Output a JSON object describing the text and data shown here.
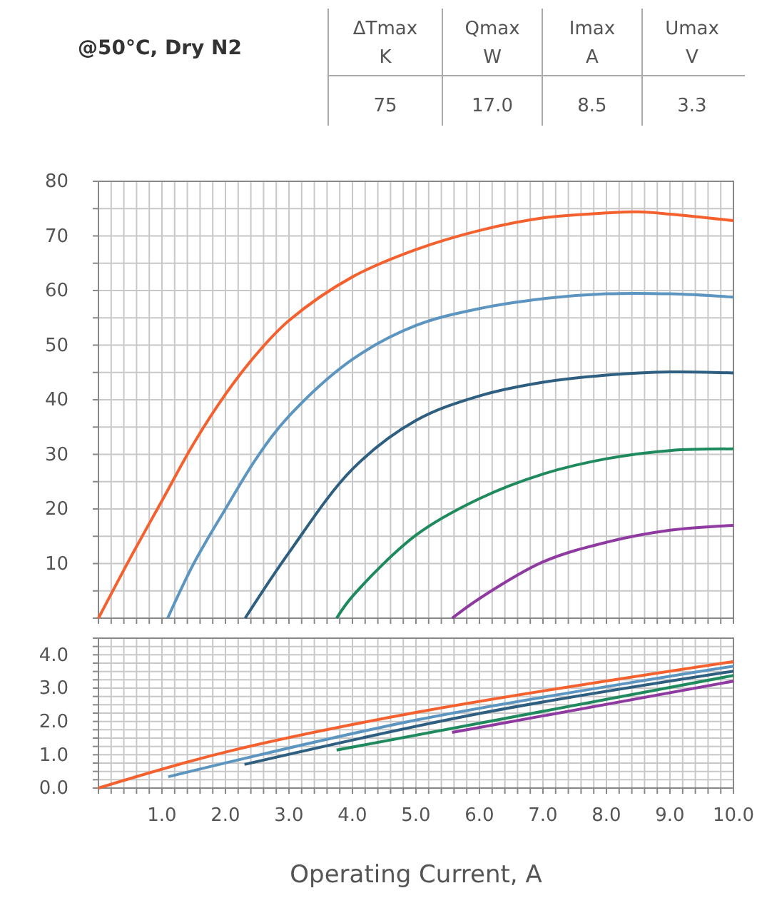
{
  "chart_data": [
    {
      "type": "other",
      "title": "@50°C, Dry N2",
      "categories": [
        "ΔTmax\nK",
        "Qmax\nW",
        "Imax\nA",
        "Umax\nV"
      ],
      "value_labels": [
        "75",
        "17.0",
        "8.5",
        "3.3"
      ]
    },
    {
      "type": "line",
      "tick_labels": "y",
      "grid": true,
      "xlim": [
        0,
        10
      ],
      "ylim": [
        0,
        80
      ],
      "xticks": [
        {
          "value": 0,
          "label": null
        },
        {
          "value": 0.2,
          "label": null
        },
        {
          "value": 0.4,
          "label": null
        },
        {
          "value": 0.6,
          "label": null
        },
        {
          "value": 0.8,
          "label": null
        },
        {
          "value": 1,
          "label": null
        },
        {
          "value": 1.2,
          "label": null
        },
        {
          "value": 1.4,
          "label": null
        },
        {
          "value": 1.6,
          "label": null
        },
        {
          "value": 1.8,
          "label": null
        },
        {
          "value": 2,
          "label": null
        },
        {
          "value": 2.2,
          "label": null
        },
        {
          "value": 2.4,
          "label": null
        },
        {
          "value": 2.6,
          "label": null
        },
        {
          "value": 2.8,
          "label": null
        },
        {
          "value": 3,
          "label": null
        },
        {
          "value": 3.2,
          "label": null
        },
        {
          "value": 3.4,
          "label": null
        },
        {
          "value": 3.6,
          "label": null
        },
        {
          "value": 3.8,
          "label": null
        },
        {
          "value": 4,
          "label": null
        },
        {
          "value": 4.2,
          "label": null
        },
        {
          "value": 4.4,
          "label": null
        },
        {
          "value": 4.6,
          "label": null
        },
        {
          "value": 4.8,
          "label": null
        },
        {
          "value": 5,
          "label": null
        },
        {
          "value": 5.2,
          "label": null
        },
        {
          "value": 5.4,
          "label": null
        },
        {
          "value": 5.6,
          "label": null
        },
        {
          "value": 5.8,
          "label": null
        },
        {
          "value": 6,
          "label": null
        },
        {
          "value": 6.2,
          "label": null
        },
        {
          "value": 6.4,
          "label": null
        },
        {
          "value": 6.6,
          "label": null
        },
        {
          "value": 6.8,
          "label": null
        },
        {
          "value": 7,
          "label": null
        },
        {
          "value": 7.2,
          "label": null
        },
        {
          "value": 7.4,
          "label": null
        },
        {
          "value": 7.6,
          "label": null
        },
        {
          "value": 7.8,
          "label": null
        },
        {
          "value": 8,
          "label": null
        },
        {
          "value": 8.2,
          "label": null
        },
        {
          "value": 8.4,
          "label": null
        },
        {
          "value": 8.6,
          "label": null
        },
        {
          "value": 8.8,
          "label": null
        },
        {
          "value": 9,
          "label": null
        },
        {
          "value": 9.2,
          "label": null
        },
        {
          "value": 9.4,
          "label": null
        },
        {
          "value": 9.6,
          "label": null
        },
        {
          "value": 9.8,
          "label": null
        },
        {
          "value": 10,
          "label": null
        }
      ],
      "yticks": [
        {
          "value": 0,
          "label": null
        },
        {
          "value": 5,
          "label": null
        },
        10,
        {
          "value": 15,
          "label": null
        },
        20,
        {
          "value": 25,
          "label": null
        },
        30,
        {
          "value": 35,
          "label": null
        },
        40,
        {
          "value": 45,
          "label": null
        },
        50,
        {
          "value": 55,
          "label": null
        },
        60,
        {
          "value": 65,
          "label": null
        },
        70,
        {
          "value": 75,
          "label": null
        },
        80
      ],
      "series": [
        {
          "color": "#f4612f",
          "x": [
            0,
            0.5,
            1,
            1.5,
            2,
            2.5,
            3,
            4,
            5,
            6,
            7,
            8,
            8.5,
            9,
            10
          ],
          "values": [
            0,
            11,
            21.5,
            32,
            41,
            48.5,
            54.5,
            62.5,
            67.5,
            71,
            73.3,
            74.2,
            74.4,
            74,
            72.8
          ]
        },
        {
          "color": "#5b95c0",
          "x": [
            1.09,
            1.5,
            2,
            2.5,
            3,
            4,
            5,
            6,
            7,
            8,
            9,
            10
          ],
          "values": [
            0,
            10,
            20,
            29.5,
            37,
            47.4,
            53.6,
            56.7,
            58.5,
            59.4,
            59.4,
            58.8
          ]
        },
        {
          "color": "#2e5f80",
          "x": [
            2.31,
            3,
            4,
            5,
            6,
            7,
            8,
            9,
            10
          ],
          "values": [
            0,
            12,
            27.3,
            36.2,
            40.7,
            43.2,
            44.5,
            45.1,
            44.9
          ]
        },
        {
          "color": "#1e8a5e",
          "x": [
            3.75,
            4,
            5,
            6,
            7,
            8,
            9,
            10
          ],
          "values": [
            0,
            4,
            15.2,
            21.9,
            26.4,
            29.2,
            30.7,
            31
          ]
        },
        {
          "color": "#8e3aa0",
          "x": [
            5.57,
            6,
            7,
            8,
            9,
            10
          ],
          "values": [
            0,
            3.6,
            10.3,
            13.9,
            16.1,
            17
          ]
        }
      ]
    },
    {
      "type": "line",
      "grid": true,
      "xlabel": "Operating Current, A",
      "xlim": [
        0,
        10
      ],
      "ylim": [
        0,
        4.5
      ],
      "xticks": [
        {
          "value": 0,
          "label": null
        },
        {
          "value": 0.2,
          "label": null
        },
        {
          "value": 0.4,
          "label": null
        },
        {
          "value": 0.6,
          "label": null
        },
        {
          "value": 0.8,
          "label": null
        },
        {
          "value": 1,
          "label": "1.0"
        },
        {
          "value": 1.2,
          "label": null
        },
        {
          "value": 1.4,
          "label": null
        },
        {
          "value": 1.6,
          "label": null
        },
        {
          "value": 1.8,
          "label": null
        },
        {
          "value": 2,
          "label": "2.0"
        },
        {
          "value": 2.2,
          "label": null
        },
        {
          "value": 2.4,
          "label": null
        },
        {
          "value": 2.6,
          "label": null
        },
        {
          "value": 2.8,
          "label": null
        },
        {
          "value": 3,
          "label": "3.0"
        },
        {
          "value": 3.2,
          "label": null
        },
        {
          "value": 3.4,
          "label": null
        },
        {
          "value": 3.6,
          "label": null
        },
        {
          "value": 3.8,
          "label": null
        },
        {
          "value": 4,
          "label": "4.0"
        },
        {
          "value": 4.2,
          "label": null
        },
        {
          "value": 4.4,
          "label": null
        },
        {
          "value": 4.6,
          "label": null
        },
        {
          "value": 4.8,
          "label": null
        },
        {
          "value": 5,
          "label": "5.0"
        },
        {
          "value": 5.2,
          "label": null
        },
        {
          "value": 5.4,
          "label": null
        },
        {
          "value": 5.6,
          "label": null
        },
        {
          "value": 5.8,
          "label": null
        },
        {
          "value": 6,
          "label": "6.0"
        },
        {
          "value": 6.2,
          "label": null
        },
        {
          "value": 6.4,
          "label": null
        },
        {
          "value": 6.6,
          "label": null
        },
        {
          "value": 6.8,
          "label": null
        },
        {
          "value": 7,
          "label": "7.0"
        },
        {
          "value": 7.2,
          "label": null
        },
        {
          "value": 7.4,
          "label": null
        },
        {
          "value": 7.6,
          "label": null
        },
        {
          "value": 7.8,
          "label": null
        },
        {
          "value": 8,
          "label": "8.0"
        },
        {
          "value": 8.2,
          "label": null
        },
        {
          "value": 8.4,
          "label": null
        },
        {
          "value": 8.6,
          "label": null
        },
        {
          "value": 8.8,
          "label": null
        },
        {
          "value": 9,
          "label": "9.0"
        },
        {
          "value": 9.2,
          "label": null
        },
        {
          "value": 9.4,
          "label": null
        },
        {
          "value": 9.6,
          "label": null
        },
        {
          "value": 9.8,
          "label": null
        },
        {
          "value": 10,
          "label": "10.0"
        }
      ],
      "yticks": [
        {
          "value": 0,
          "label": "0.0"
        },
        {
          "value": 0.25,
          "label": null
        },
        {
          "value": 0.5,
          "label": null
        },
        {
          "value": 0.75,
          "label": null
        },
        {
          "value": 1,
          "label": "1.0"
        },
        {
          "value": 1.25,
          "label": null
        },
        {
          "value": 1.5,
          "label": null
        },
        {
          "value": 1.75,
          "label": null
        },
        {
          "value": 2,
          "label": "2.0"
        },
        {
          "value": 2.25,
          "label": null
        },
        {
          "value": 2.5,
          "label": null
        },
        {
          "value": 2.75,
          "label": null
        },
        {
          "value": 3,
          "label": "3.0"
        },
        {
          "value": 3.25,
          "label": null
        },
        {
          "value": 3.5,
          "label": null
        },
        {
          "value": 3.75,
          "label": null
        },
        {
          "value": 4,
          "label": "4.0"
        },
        {
          "value": 4.25,
          "label": null
        },
        {
          "value": 4.5,
          "label": null
        }
      ],
      "series": [
        {
          "color": "#f4612f",
          "x": [
            0,
            2,
            5,
            10
          ],
          "values": [
            0,
            1.08,
            2.27,
            3.8
          ]
        },
        {
          "color": "#5b95c0",
          "x": [
            1.1,
            5,
            10
          ],
          "values": [
            0.34,
            2.04,
            3.66
          ]
        },
        {
          "color": "#2e5f80",
          "x": [
            2.3,
            6,
            10
          ],
          "values": [
            0.71,
            2.24,
            3.51
          ]
        },
        {
          "color": "#1e8a5e",
          "x": [
            3.75,
            10
          ],
          "values": [
            1.14,
            3.38
          ]
        },
        {
          "color": "#8e3aa0",
          "x": [
            5.57,
            10
          ],
          "values": [
            1.67,
            3.21
          ]
        }
      ]
    }
  ]
}
